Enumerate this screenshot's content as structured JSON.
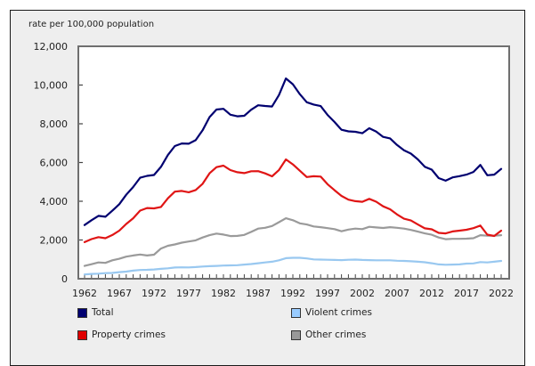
{
  "chart_data": {
    "type": "line",
    "title": "",
    "ylabel": "rate per 100,000 population",
    "xlabel": "",
    "ylim": [
      0,
      12000
    ],
    "yticks": [
      0,
      2000,
      4000,
      6000,
      8000,
      10000,
      12000
    ],
    "ytick_labels": [
      "0",
      "2,000",
      "4,000",
      "6,000",
      "8,000",
      "10,000",
      "12,000"
    ],
    "xlim": [
      1962,
      2022
    ],
    "xtick_labels": [
      "1962",
      "1967",
      "1972",
      "1977",
      "1982",
      "1987",
      "1992",
      "1997",
      "2002",
      "2007",
      "2012",
      "2017",
      "2022"
    ],
    "grid": false,
    "legend_position": "bottom",
    "x": [
      1962,
      1963,
      1964,
      1965,
      1966,
      1967,
      1968,
      1969,
      1970,
      1971,
      1972,
      1973,
      1974,
      1975,
      1976,
      1977,
      1978,
      1979,
      1980,
      1981,
      1982,
      1983,
      1984,
      1985,
      1986,
      1987,
      1988,
      1989,
      1990,
      1991,
      1992,
      1993,
      1994,
      1995,
      1996,
      1997,
      1998,
      1999,
      2000,
      2001,
      2002,
      2003,
      2004,
      2005,
      2006,
      2007,
      2008,
      2009,
      2010,
      2011,
      2012,
      2013,
      2014,
      2015,
      2016,
      2017,
      2018,
      2019,
      2020,
      2021,
      2022
    ],
    "series": [
      {
        "name": "Total",
        "color": "#000070",
        "values": [
          2771,
          3022,
          3245,
          3199,
          3511,
          3850,
          4336,
          4737,
          5212,
          5311,
          5355,
          5773,
          6388,
          6852,
          6984,
          6971,
          7154,
          7666,
          8343,
          8736,
          8773,
          8470,
          8387,
          8413,
          8727,
          8957,
          8919,
          8892,
          9485,
          10342,
          10040,
          9531,
          9114,
          8993,
          8914,
          8453,
          8093,
          7694,
          7607,
          7587,
          7512,
          7770,
          7600,
          7325,
          7245,
          6907,
          6631,
          6461,
          6159,
          5779,
          5632,
          5195,
          5061,
          5232,
          5297,
          5375,
          5514,
          5874,
          5344,
          5375,
          5668
        ]
      },
      {
        "name": "Property crimes",
        "color": "#e01515",
        "values": [
          1891,
          2047,
          2146,
          2091,
          2258,
          2484,
          2826,
          3120,
          3515,
          3649,
          3634,
          3704,
          4151,
          4498,
          4533,
          4466,
          4579,
          4903,
          5444,
          5759,
          5840,
          5608,
          5501,
          5451,
          5550,
          5552,
          5439,
          5289,
          5612,
          6160,
          5904,
          5575,
          5250,
          5292,
          5274,
          4880,
          4569,
          4276,
          4081,
          4004,
          3973,
          4123,
          3977,
          3737,
          3588,
          3321,
          3100,
          3007,
          2800,
          2600,
          2552,
          2367,
          2339,
          2440,
          2482,
          2530,
          2611,
          2745,
          2277,
          2205,
          2481
        ]
      },
      {
        "name": "Violent crimes",
        "color": "#99c8f0",
        "values": [
          220,
          250,
          260,
          290,
          300,
          340,
          370,
          420,
          450,
          460,
          480,
          510,
          540,
          580,
          590,
          585,
          600,
          630,
          650,
          660,
          680,
          690,
          700,
          730,
          760,
          800,
          840,
          880,
          950,
          1060,
          1080,
          1080,
          1050,
          1000,
          990,
          980,
          970,
          960,
          980,
          990,
          970,
          960,
          950,
          950,
          950,
          930,
          920,
          900,
          880,
          850,
          800,
          740,
          720,
          730,
          740,
          780,
          790,
          860,
          840,
          880,
          920
        ]
      },
      {
        "name": "Other crimes",
        "color": "#9a9a9a",
        "values": [
          660,
          750,
          840,
          820,
          950,
          1030,
          1140,
          1200,
          1250,
          1200,
          1240,
          1560,
          1700,
          1770,
          1860,
          1920,
          1980,
          2130,
          2250,
          2330,
          2280,
          2200,
          2210,
          2260,
          2420,
          2590,
          2630,
          2720,
          2920,
          3120,
          3020,
          2860,
          2800,
          2700,
          2660,
          2610,
          2560,
          2450,
          2540,
          2590,
          2560,
          2680,
          2650,
          2620,
          2660,
          2630,
          2590,
          2520,
          2430,
          2340,
          2270,
          2130,
          2040,
          2060,
          2060,
          2070,
          2090,
          2250,
          2220,
          2220,
          2250
        ]
      }
    ]
  },
  "legend": {
    "items": [
      {
        "label": "Total",
        "color": "#000070"
      },
      {
        "label": "Violent crimes",
        "color": "#99ccff"
      },
      {
        "label": "Property crimes",
        "color": "#e00000"
      },
      {
        "label": "Other crimes",
        "color": "#999999"
      }
    ]
  }
}
